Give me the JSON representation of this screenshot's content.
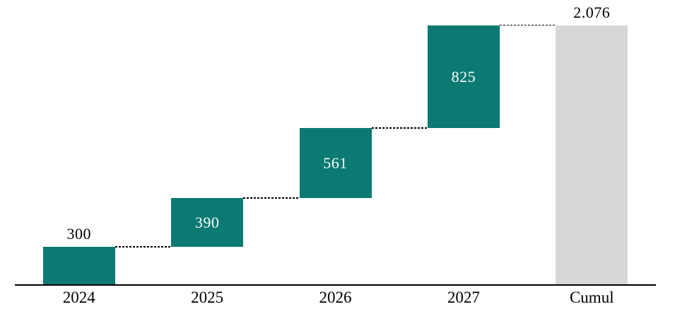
{
  "chart": {
    "background": "#FFFFFF",
    "colors": {
      "increment_bar": "#0A7A72",
      "total_bar": "#D6D7D9",
      "label_inside": "#FFFFFF",
      "label_outside": "#000000",
      "axis_line": "#000000",
      "connector": "#000000"
    }
  },
  "chart_data": {
    "type": "bar",
    "subtype": "waterfall",
    "title": "",
    "xlabel": "",
    "ylabel": "",
    "ylim": [
      0,
      2076
    ],
    "grid": false,
    "legend": false,
    "categories": [
      "2024",
      "2025",
      "2026",
      "2027",
      "Cumul"
    ],
    "bars": [
      {
        "category": "2024",
        "value": 300,
        "label": "300",
        "start": 0,
        "end": 300,
        "role": "increment",
        "label_placement": "above"
      },
      {
        "category": "2025",
        "value": 390,
        "label": "390",
        "start": 300,
        "end": 690,
        "role": "increment",
        "label_placement": "inside"
      },
      {
        "category": "2026",
        "value": 561,
        "label": "561",
        "start": 690,
        "end": 1251,
        "role": "increment",
        "label_placement": "inside"
      },
      {
        "category": "2027",
        "value": 825,
        "label": "825",
        "start": 1251,
        "end": 2076,
        "role": "increment",
        "label_placement": "inside"
      },
      {
        "category": "Cumul",
        "value": 2076,
        "label": "2.076",
        "start": 0,
        "end": 2076,
        "role": "total",
        "label_placement": "above"
      }
    ],
    "connectors": [
      {
        "from": "2024",
        "to": "2025",
        "level": 300
      },
      {
        "from": "2025",
        "to": "2026",
        "level": 690
      },
      {
        "from": "2026",
        "to": "2027",
        "level": 1251
      },
      {
        "from": "2027",
        "to": "Cumul",
        "level": 2076
      }
    ]
  }
}
